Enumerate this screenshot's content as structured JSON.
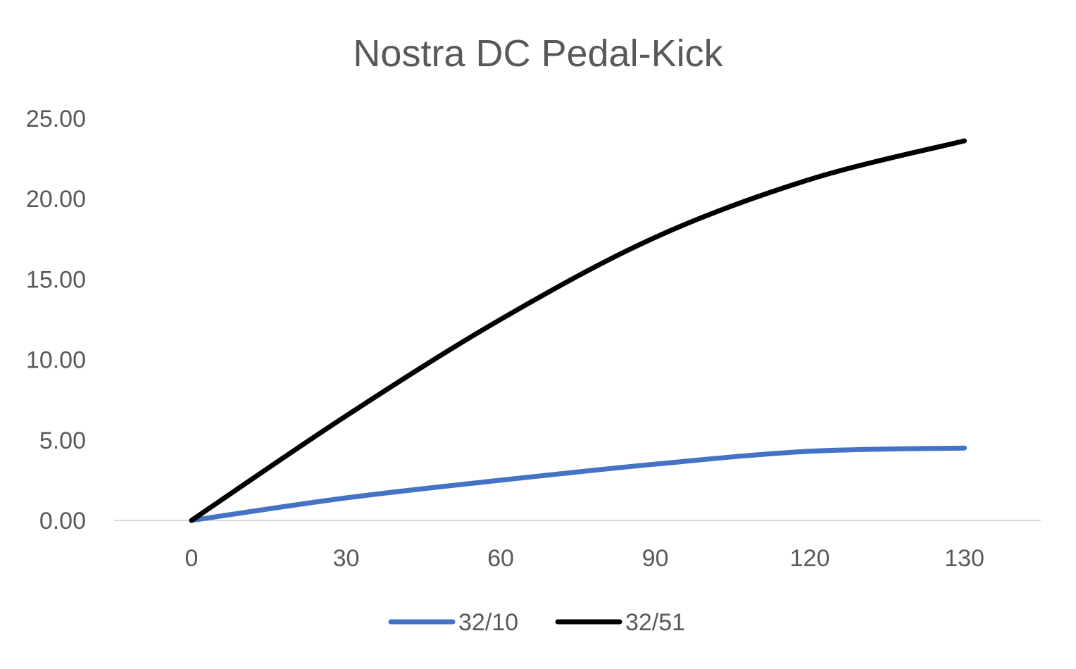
{
  "chart_data": {
    "type": "line",
    "title": "Nostra DC Pedal-Kick",
    "xlabel": "",
    "ylabel": "",
    "categories": [
      "0",
      "30",
      "60",
      "90",
      "120",
      "130"
    ],
    "ylim": [
      0,
      25
    ],
    "yticks": [
      "0.00",
      "5.00",
      "10.00",
      "15.00",
      "20.00",
      "25.00"
    ],
    "grid": false,
    "legend": "bottom",
    "series": [
      {
        "name": "32/10",
        "color": "#4472c4",
        "values": [
          0.0,
          1.4,
          2.5,
          3.5,
          4.3,
          4.5
        ]
      },
      {
        "name": "32/51",
        "color": "#000000",
        "values": [
          0.0,
          6.5,
          12.5,
          17.6,
          21.2,
          23.6
        ]
      }
    ]
  }
}
